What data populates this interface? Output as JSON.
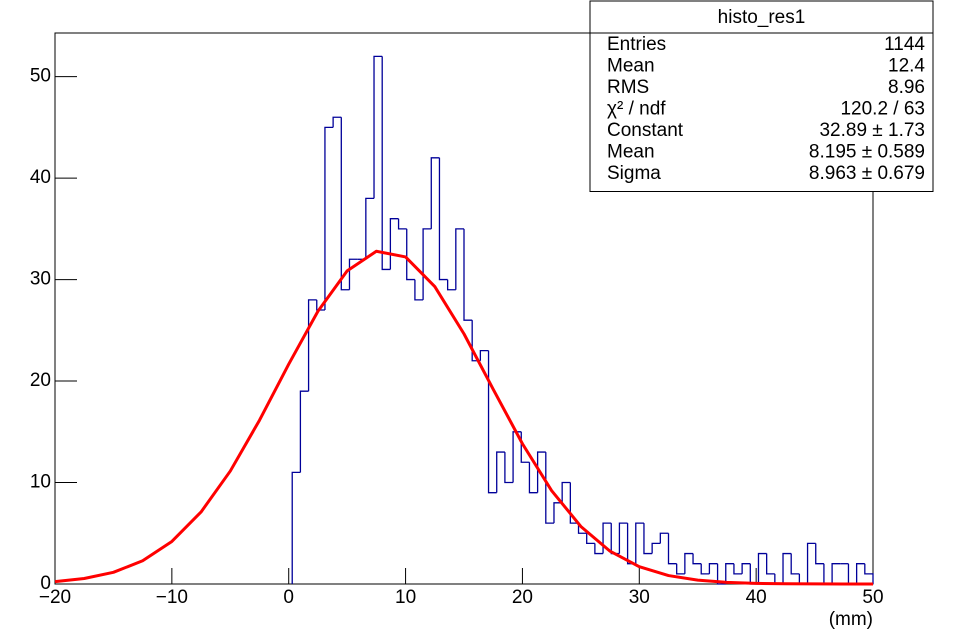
{
  "chart_data": {
    "type": "histogram",
    "bins": [
      0.3,
      1,
      1.7,
      2.4,
      3.1,
      3.8,
      4.5,
      5.2,
      5.9,
      6.6,
      7.3,
      8,
      8.7,
      9.4,
      10.1,
      10.8,
      11.5,
      12.2,
      12.9,
      13.6,
      14.3,
      15,
      15.7,
      16.4,
      17.1,
      17.8,
      18.5,
      19.2,
      19.9,
      20.6,
      21.3,
      22,
      22.7,
      23.4,
      24.1,
      24.8,
      25.5,
      26.2,
      26.9,
      27.6,
      28.3,
      29,
      29.7,
      30.4,
      31.1,
      31.8,
      32.5,
      33.2,
      33.9,
      34.6,
      35.3,
      36,
      36.7,
      37.4,
      38.1,
      38.8,
      39.5,
      40.2,
      40.9,
      41.6,
      42.3,
      43,
      43.7,
      44.4,
      45.1,
      45.8,
      46.5,
      47.2,
      47.9,
      48.6,
      49.3,
      50
    ],
    "values": [
      11,
      19,
      28,
      27,
      45,
      46,
      29,
      32,
      32,
      38,
      52,
      31,
      36,
      35,
      30,
      28,
      35,
      42,
      30,
      29,
      35,
      26,
      22,
      23,
      9,
      13,
      10,
      15,
      12,
      9,
      13,
      6,
      8,
      10,
      6,
      5,
      4,
      3,
      6,
      3,
      6,
      2,
      6,
      3,
      4,
      5,
      2,
      1,
      3,
      2,
      1,
      2,
      0,
      2,
      1,
      2,
      0,
      3,
      1,
      0,
      3,
      1,
      0,
      4,
      2,
      0,
      2,
      2,
      0,
      2,
      1
    ],
    "color": "#000099",
    "fit": {
      "color": "#ff0000",
      "x": [
        -20,
        -17.5,
        -15,
        -12.5,
        -10,
        -7.5,
        -5,
        -2.5,
        0,
        2.5,
        5,
        7.5,
        10,
        12.5,
        15,
        17.5,
        20,
        22.5,
        25,
        27.5,
        30,
        32.5,
        35,
        37.5,
        40,
        42.5,
        45,
        47.5,
        50
      ],
      "y": [
        0.23,
        0.54,
        1.15,
        2.29,
        4.19,
        7.1,
        11.13,
        16.14,
        21.66,
        26.88,
        30.86,
        32.79,
        32.23,
        29.31,
        24.65,
        19.19,
        13.82,
        9.2,
        5.67,
        3.23,
        1.71,
        0.83,
        0.38,
        0.16,
        0.06,
        0.02,
        0.01,
        0,
        0
      ]
    },
    "xlim": [
      -20,
      50
    ],
    "ylim": [
      0,
      54.3
    ],
    "xticks": [
      {
        "value": -20,
        "label": "−20"
      },
      {
        "value": -10,
        "label": "−10"
      },
      0,
      10,
      20,
      30,
      40,
      50
    ],
    "yticks": [
      0,
      10,
      20,
      30,
      40,
      50
    ],
    "x_label": "(mm)",
    "stats": {
      "title": "histo_res1",
      "rows": [
        {
          "label": "Entries",
          "value": "1144"
        },
        {
          "label": "Mean",
          "value": "12.4"
        },
        {
          "label": "RMS",
          "value": "8.96"
        },
        {
          "label": "χ² / ndf",
          "value": "120.2 / 63"
        },
        {
          "label": "Constant",
          "value": "32.89 ± 1.73"
        },
        {
          "label": "Mean",
          "value": "8.195 ± 0.589"
        },
        {
          "label": "Sigma",
          "value": "8.963 ± 0.679"
        }
      ]
    }
  }
}
